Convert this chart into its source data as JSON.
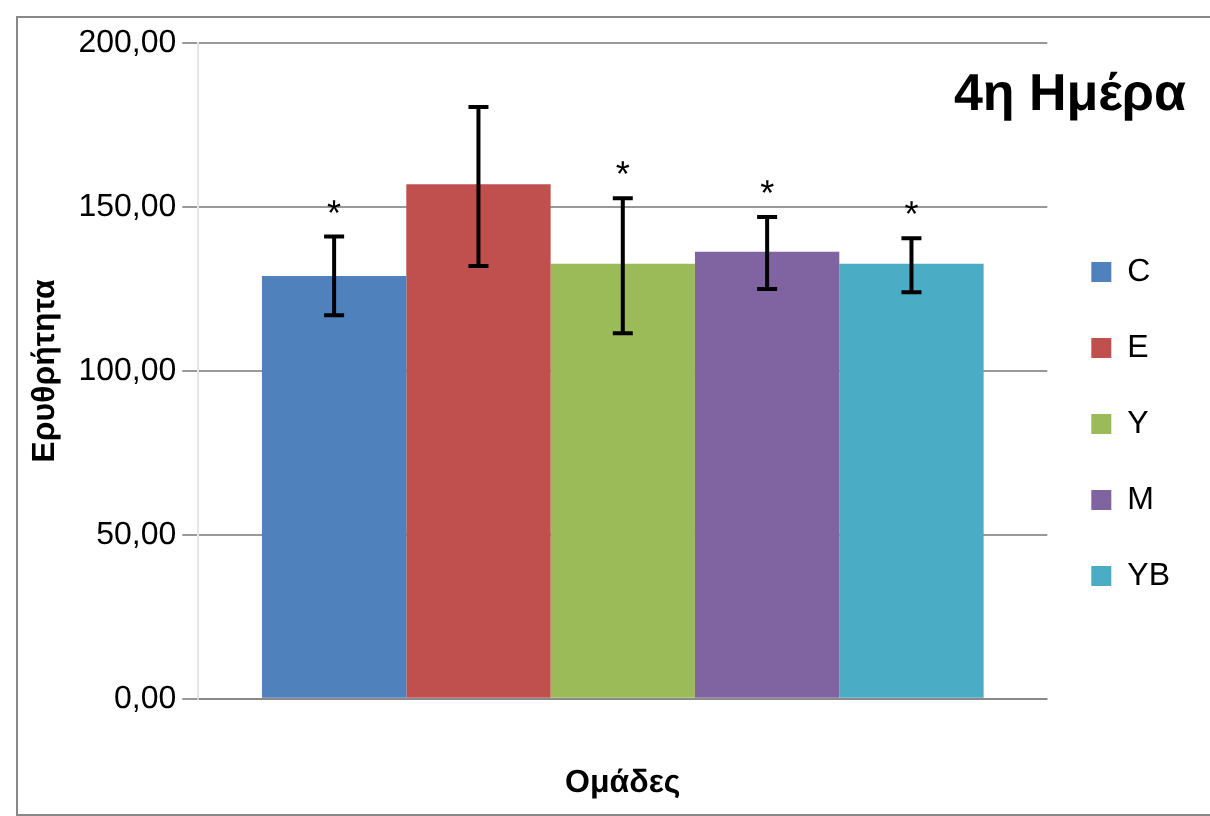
{
  "chart_data": {
    "type": "bar",
    "title": "4η Ημέρα",
    "xlabel": "Ομάδες",
    "ylabel": "Ερυθρήτητα",
    "categories": [
      null
    ],
    "series": [
      {
        "name": "C",
        "color": "#4f81bd",
        "values": [
          129
        ],
        "errors": [
          [
            117,
            141
          ]
        ]
      },
      {
        "name": "E",
        "color": "#c0504d",
        "values": [
          157
        ],
        "errors": [
          [
            132,
            180.5
          ]
        ]
      },
      {
        "name": "Y",
        "color": "#9bbb59",
        "values": [
          132.7
        ],
        "errors": [
          [
            111.5,
            152.7
          ]
        ]
      },
      {
        "name": "M",
        "color": "#8064a2",
        "values": [
          136.4
        ],
        "errors": [
          [
            125,
            147
          ]
        ]
      },
      {
        "name": "YB",
        "color": "#4bacc6",
        "values": [
          132.7
        ],
        "errors": [
          [
            124,
            140.5
          ]
        ]
      }
    ],
    "annotations": [
      "*",
      null,
      "*",
      "*",
      "*"
    ],
    "ylim": [
      0,
      200
    ],
    "yticks": [
      {
        "value": 0,
        "label": "0,00"
      },
      {
        "value": 50,
        "label": "50,00"
      },
      {
        "value": 100,
        "label": "100,00"
      },
      {
        "value": 150,
        "label": "150,00"
      },
      {
        "value": 200,
        "label": "200,00"
      }
    ],
    "grid": "y",
    "legend": "right"
  }
}
